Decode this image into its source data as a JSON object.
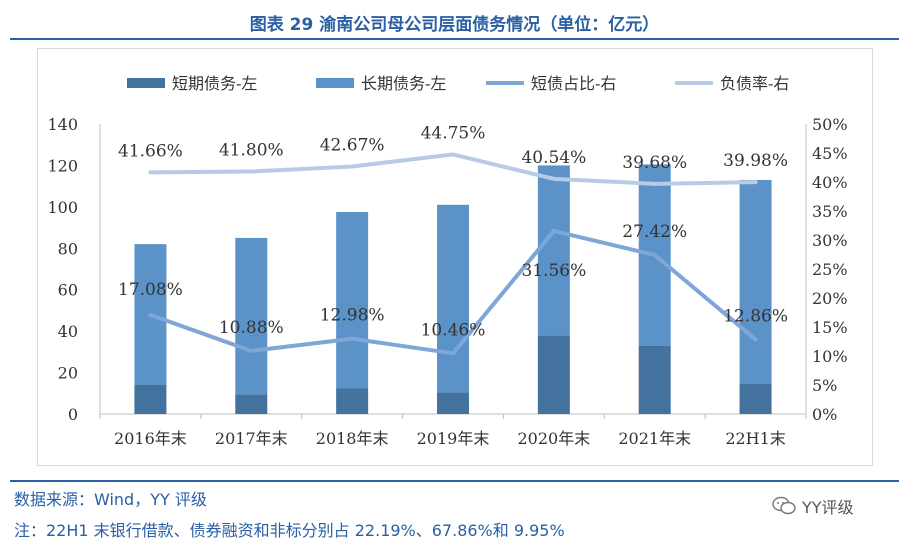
{
  "title": "图表 29 渝南公司母公司层面债务情况（单位：亿元）",
  "footer": {
    "source": "数据来源：Wind，YY 评级",
    "note": "注：22H1 末银行借款、债券融资和非标分别占 22.19%、67.86%和 9.95%"
  },
  "watermark": {
    "text": "YY评级",
    "icon": "wechat-icon"
  },
  "colors": {
    "short_debt": "#44729f",
    "long_debt": "#5b93c9",
    "short_ratio": "#7ea6d6",
    "debt_ratio": "#b8cbe4",
    "accent": "#2a5fa3"
  },
  "chart_data": {
    "type": "bar",
    "categories": [
      "2016年末",
      "2017年末",
      "2018年末",
      "2019年末",
      "2020年末",
      "2021年末",
      "22H1末"
    ],
    "series": [
      {
        "name": "短期债务-左",
        "kind": "stacked-bar",
        "axis": "left",
        "values": [
          14,
          9.5,
          12.5,
          10.5,
          38,
          33,
          14.5
        ]
      },
      {
        "name": "长期债务-左",
        "kind": "stacked-bar",
        "axis": "left",
        "values": [
          68,
          75.5,
          85,
          90.5,
          82,
          87.5,
          98.5
        ]
      },
      {
        "name": "短债占比-右",
        "kind": "line",
        "axis": "right",
        "values": [
          17.08,
          10.88,
          12.98,
          10.46,
          31.56,
          27.42,
          12.86
        ],
        "labels": [
          "17.08%",
          "10.88%",
          "12.98%",
          "10.46%",
          "31.56%",
          "27.42%",
          "12.86%"
        ]
      },
      {
        "name": "负债率-右",
        "kind": "line",
        "axis": "right",
        "values": [
          41.66,
          41.8,
          42.67,
          44.75,
          40.54,
          39.68,
          39.98
        ],
        "labels": [
          "41.66%",
          "41.80%",
          "42.67%",
          "44.75%",
          "40.54%",
          "39.68%",
          "39.98%"
        ]
      }
    ],
    "y_left": {
      "range": [
        0,
        140
      ],
      "ticks": [
        "0",
        "20",
        "40",
        "60",
        "80",
        "100",
        "120",
        "140"
      ]
    },
    "y_right": {
      "range": [
        0,
        50
      ],
      "ticks": [
        "0%",
        "5%",
        "10%",
        "15%",
        "20%",
        "25%",
        "30%",
        "35%",
        "40%",
        "45%",
        "50%"
      ]
    },
    "legend": "top",
    "grid": false
  }
}
